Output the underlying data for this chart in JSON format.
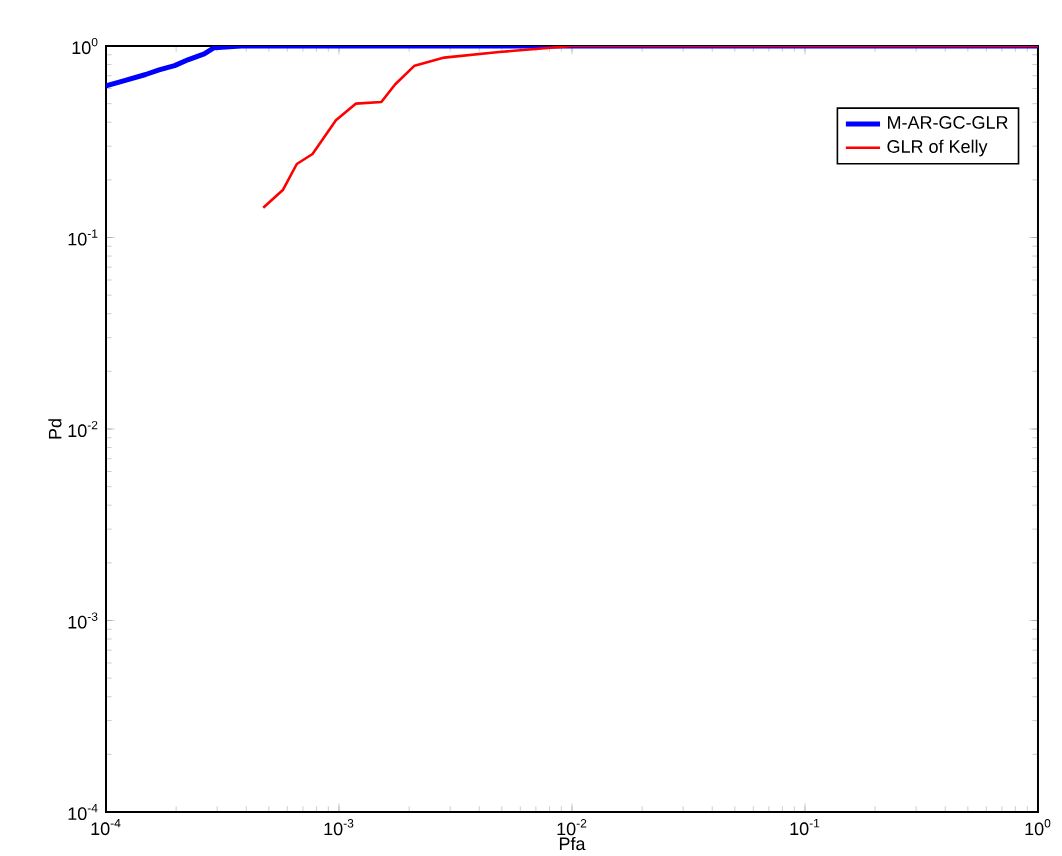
{
  "chart_data": {
    "type": "line",
    "xlabel": "Pfa",
    "ylabel": "Pd",
    "log": "xy",
    "legend": "top right",
    "grid": false,
    "xlim": [
      0.0001,
      1
    ],
    "ylim": [
      0.0001,
      1
    ],
    "xticks": [
      {
        "value": 0.0001,
        "label": "10$^{-4}$"
      },
      {
        "value": 0.001,
        "label": "10$^{-3}$"
      },
      {
        "value": 0.01,
        "label": "10$^{-2}$"
      },
      {
        "value": 0.1,
        "label": "10$^{-1}$"
      },
      {
        "value": 1,
        "label": "10$^{0}$"
      }
    ],
    "yticks": [
      {
        "value": 0.0001,
        "label": "10$^{-4}$"
      },
      {
        "value": 0.001,
        "label": "10$^{-3}$"
      },
      {
        "value": 0.01,
        "label": "10$^{-2}$"
      },
      {
        "value": 0.1,
        "label": "10$^{-1}$"
      },
      {
        "value": 1,
        "label": "10$^{0}$"
      }
    ],
    "series": [
      {
        "name": "M-AR-GC-GLR",
        "color": "#0000ff",
        "x": [
          0.0001,
          0.00012,
          0.000148,
          0.000169,
          0.000197,
          0.000226,
          0.000264,
          0.000291,
          0.00038,
          1
        ],
        "values": [
          0.62,
          0.66,
          0.71,
          0.75,
          0.79,
          0.85,
          0.91,
          0.98,
          1,
          1
        ]
      },
      {
        "name": "GLR of Kelly",
        "color": "#ff0000",
        "x": [
          0.000473,
          0.000574,
          0.000659,
          0.00077,
          0.00097,
          0.00118,
          0.00152,
          0.00174,
          0.00211,
          0.00283,
          0.00487,
          0.01,
          1
        ],
        "values": [
          0.143,
          0.177,
          0.242,
          0.273,
          0.41,
          0.5,
          0.51,
          0.63,
          0.79,
          0.87,
          0.93,
          1,
          1
        ]
      }
    ]
  }
}
